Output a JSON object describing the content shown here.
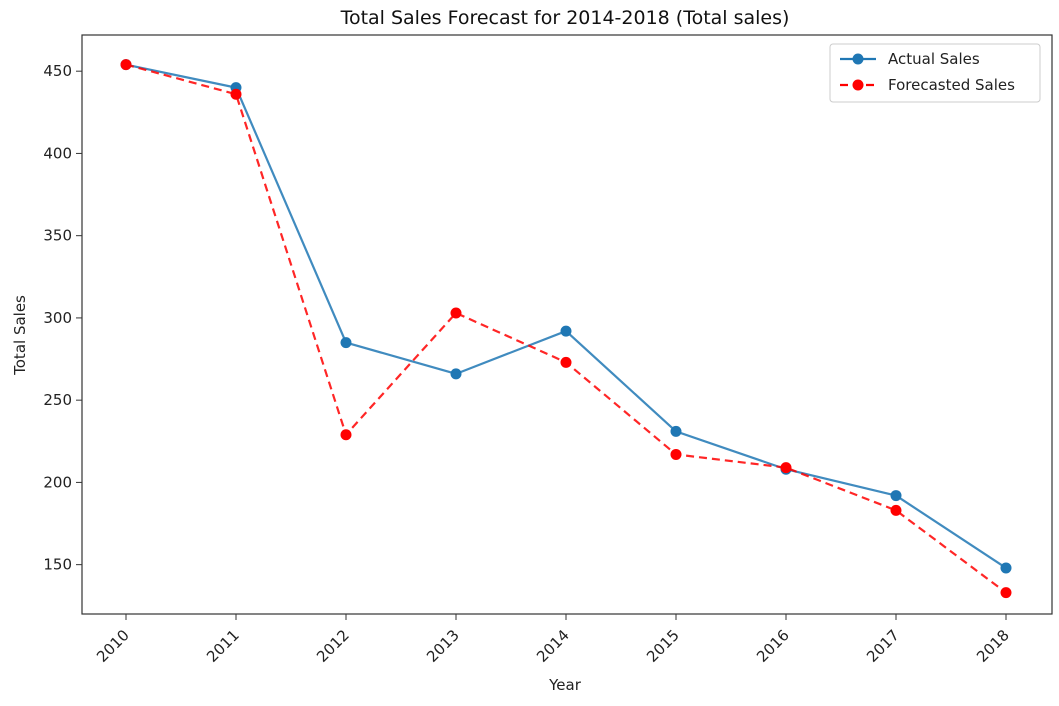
{
  "chart_data": {
    "type": "line",
    "title": "Total Sales Forecast for 2014-2018 (Total sales)",
    "xlabel": "Year",
    "ylabel": "Total Sales",
    "categories": [
      "2010",
      "2011",
      "2012",
      "2013",
      "2014",
      "2015",
      "2016",
      "2017",
      "2018"
    ],
    "yticks": [
      150,
      200,
      250,
      300,
      350,
      400,
      450
    ],
    "ylim": [
      120,
      472
    ],
    "grid": false,
    "legend_position": "top-right",
    "series": [
      {
        "name": "Actual Sales",
        "values": [
          454,
          440,
          285,
          266,
          292,
          231,
          208,
          192,
          148
        ],
        "color": "#1f77b4",
        "line_style": "solid",
        "marker": "circle"
      },
      {
        "name": "Forecasted Sales",
        "values": [
          454,
          436,
          229,
          303,
          273,
          217,
          209,
          183,
          133
        ],
        "color": "#ff0000",
        "line_style": "dashed",
        "marker": "circle"
      }
    ]
  }
}
